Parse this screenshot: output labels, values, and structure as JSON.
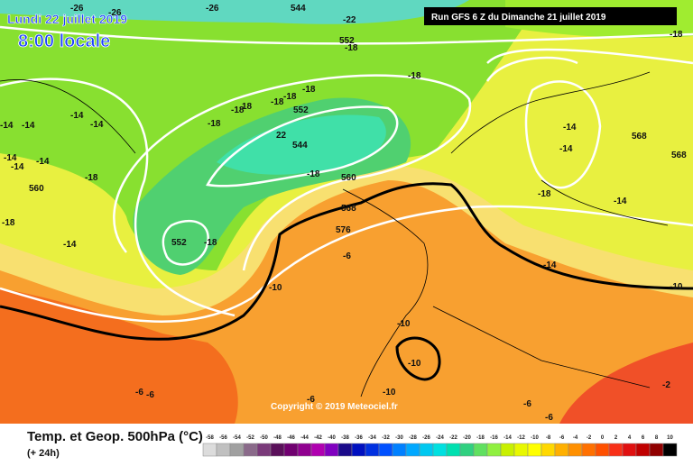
{
  "header": {
    "valid_time": "Lundi 22 juillet 2019",
    "local_time": "8:00 locale",
    "run": "Run GFS 6 Z du Dimanche 21 juillet 2019"
  },
  "copyright": "Copyright © 2019 Meteociel.fr",
  "legend": {
    "title": "Temp. et Geop. 500hPa (°C)",
    "lead": "(+ 24h)",
    "labels": [
      "-58",
      "-56",
      "-54",
      "-52",
      "-50",
      "-48",
      "-46",
      "-44",
      "-42",
      "-40",
      "-38",
      "-36",
      "-34",
      "-32",
      "-30",
      "-28",
      "-26",
      "-24",
      "-22",
      "-20",
      "-18",
      "-16",
      "-14",
      "-12",
      "-10",
      "-8",
      "-6",
      "-4",
      "-2",
      "0",
      "2",
      "4",
      "6",
      "8",
      "10"
    ],
    "colors": [
      "#dcdcdc",
      "#c0c0c0",
      "#a0a0a0",
      "#8a6a8a",
      "#7a3a7a",
      "#5a105a",
      "#700070",
      "#900090",
      "#b000b0",
      "#8000c0",
      "#1a0a8a",
      "#0010c0",
      "#0030e0",
      "#0050ff",
      "#0080ff",
      "#00a8ff",
      "#00c8f0",
      "#00e0e0",
      "#00e0b0",
      "#30d080",
      "#60e060",
      "#90f040",
      "#c8f000",
      "#e8f800",
      "#ffff00",
      "#ffd800",
      "#ffb000",
      "#ff9000",
      "#ff7000",
      "#ff5000",
      "#f83018",
      "#e01010",
      "#c00000",
      "#900000",
      "#000000"
    ]
  },
  "contour_labels": [
    "-26",
    "-26",
    "-26",
    "544",
    "-22",
    "552",
    "-18",
    "-18",
    "-18",
    "-14",
    "-14",
    "-14",
    "-14",
    "-18",
    "-18",
    "18",
    "-18",
    "-18",
    "552",
    "-18",
    "22",
    "544",
    "-18",
    "560",
    "-18",
    "-14",
    "-18",
    "552",
    "-18",
    "-14",
    "560",
    "568",
    "576",
    "-6",
    "-10",
    "-14",
    "-14",
    "568",
    "568",
    "-18",
    "-14",
    "-14",
    "-10",
    "-10",
    "-10",
    "-10",
    "-6",
    "-6",
    "-6",
    "-6",
    "-6",
    "-2",
    "-14",
    "-14"
  ]
}
